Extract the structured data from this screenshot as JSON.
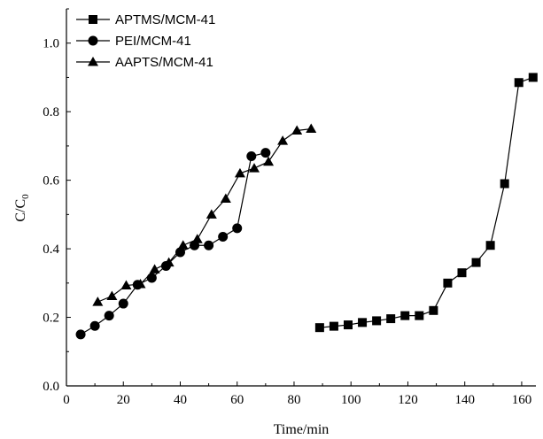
{
  "chart_data": {
    "type": "line",
    "title": "",
    "xlabel": "Time/min",
    "ylabel_main": "C/C",
    "ylabel_sub": "0",
    "xlim": [
      0,
      165
    ],
    "ylim": [
      0.0,
      1.1
    ],
    "x_ticks": [
      0,
      20,
      40,
      60,
      80,
      100,
      120,
      140,
      160
    ],
    "x_tick_labels": [
      "0",
      "20",
      "40",
      "60",
      "80",
      "100",
      "120",
      "140",
      "160"
    ],
    "y_ticks": [
      0.0,
      0.2,
      0.4,
      0.6,
      0.8,
      1.0
    ],
    "y_tick_labels": [
      "0.0",
      "0.2",
      "0.4",
      "0.6",
      "0.8",
      "1.0"
    ],
    "legend_position": "top-left",
    "series": [
      {
        "name": "APTMS/MCM-41",
        "marker": "square",
        "color": "#000000",
        "x": [
          89,
          94,
          99,
          104,
          109,
          114,
          119,
          124,
          129,
          134,
          139,
          144,
          149,
          154,
          159,
          164
        ],
        "y": [
          0.17,
          0.174,
          0.178,
          0.185,
          0.19,
          0.196,
          0.205,
          0.205,
          0.22,
          0.3,
          0.33,
          0.36,
          0.41,
          0.59,
          0.885,
          0.9
        ]
      },
      {
        "name": "PEI/MCM-41",
        "marker": "circle",
        "color": "#000000",
        "x": [
          5,
          10,
          15,
          20,
          25,
          30,
          35,
          40,
          45,
          50,
          55,
          60,
          65,
          70
        ],
        "y": [
          0.15,
          0.175,
          0.205,
          0.24,
          0.295,
          0.315,
          0.35,
          0.39,
          0.41,
          0.41,
          0.435,
          0.46,
          0.67,
          0.68
        ]
      },
      {
        "name": "AAPTS/MCM-41",
        "marker": "triangle",
        "color": "#000000",
        "x": [
          11,
          16,
          21,
          26,
          31,
          36,
          41,
          46,
          51,
          56,
          61,
          66,
          71,
          76,
          81,
          86
        ],
        "y": [
          0.245,
          0.262,
          0.293,
          0.297,
          0.34,
          0.36,
          0.41,
          0.428,
          0.5,
          0.546,
          0.62,
          0.635,
          0.654,
          0.715,
          0.745,
          0.75
        ]
      }
    ]
  }
}
